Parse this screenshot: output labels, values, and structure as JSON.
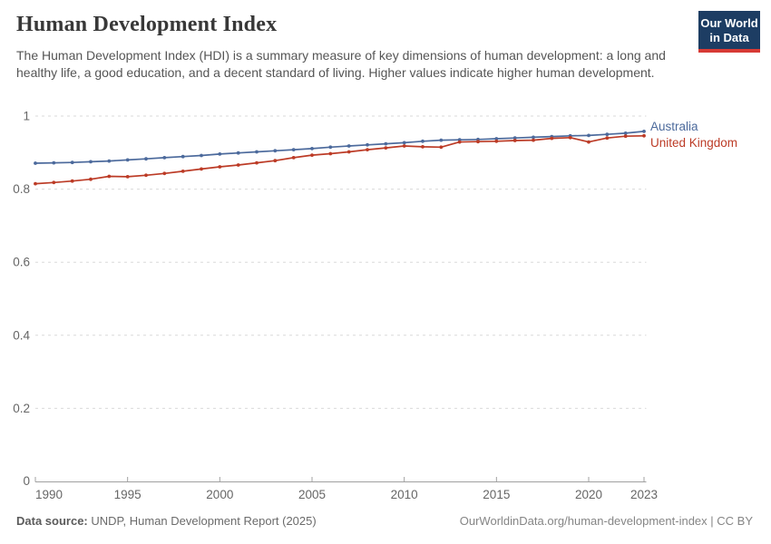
{
  "header": {
    "title": "Human Development Index",
    "subtitle": "The Human Development Index (HDI) is a summary measure of key dimensions of human development: a long and healthy life, a good education, and a decent standard of living. Higher values indicate higher human development."
  },
  "logo": {
    "line1": "Our World",
    "line2": "in Data",
    "bg_color": "#1d3d63",
    "accent_color": "#d73a35",
    "text_color": "#ffffff"
  },
  "chart_data": {
    "type": "line",
    "title": "Human Development Index",
    "xlabel": "",
    "ylabel": "",
    "ylim": [
      0,
      1
    ],
    "yticks": [
      0,
      0.2,
      0.4,
      0.6,
      0.8,
      1
    ],
    "yticklabels": [
      "0",
      "0.2",
      "0.4",
      "0.6",
      "0.8",
      "1"
    ],
    "xticks": [
      1990,
      1995,
      2000,
      2005,
      2010,
      2015,
      2020,
      2023
    ],
    "xticklabels": [
      "1990",
      "1995",
      "2000",
      "2005",
      "2010",
      "2015",
      "2020",
      "2023"
    ],
    "grid": "horizontal-dashed",
    "legend_position": "right-of-line-ends",
    "x": [
      1990,
      1991,
      1992,
      1993,
      1994,
      1995,
      1996,
      1997,
      1998,
      1999,
      2000,
      2001,
      2002,
      2003,
      2004,
      2005,
      2006,
      2007,
      2008,
      2009,
      2010,
      2011,
      2012,
      2013,
      2014,
      2015,
      2016,
      2017,
      2018,
      2019,
      2020,
      2021,
      2022,
      2023
    ],
    "series": [
      {
        "name": "Australia",
        "color": "#4C6A9C",
        "values": [
          0.871,
          0.872,
          0.873,
          0.875,
          0.877,
          0.88,
          0.883,
          0.886,
          0.889,
          0.892,
          0.896,
          0.899,
          0.902,
          0.905,
          0.908,
          0.911,
          0.915,
          0.918,
          0.921,
          0.924,
          0.927,
          0.931,
          0.934,
          0.935,
          0.936,
          0.938,
          0.94,
          0.942,
          0.944,
          0.946,
          0.947,
          0.95,
          0.953,
          0.958
        ]
      },
      {
        "name": "United Kingdom",
        "color": "#BC3B26",
        "values": [
          0.815,
          0.818,
          0.822,
          0.827,
          0.835,
          0.834,
          0.838,
          0.843,
          0.849,
          0.855,
          0.861,
          0.866,
          0.872,
          0.878,
          0.886,
          0.893,
          0.897,
          0.902,
          0.908,
          0.913,
          0.918,
          0.916,
          0.915,
          0.929,
          0.93,
          0.931,
          0.933,
          0.934,
          0.939,
          0.941,
          0.929,
          0.94,
          0.945,
          0.946
        ]
      }
    ],
    "axis_color": "#a0a0a0",
    "grid_color": "#dadada",
    "tick_label_color": "#666666"
  },
  "footer": {
    "data_source_label": "Data source:",
    "data_source": "UNDP, Human Development Report (2025)",
    "credit": "OurWorldinData.org/human-development-index | CC BY"
  }
}
